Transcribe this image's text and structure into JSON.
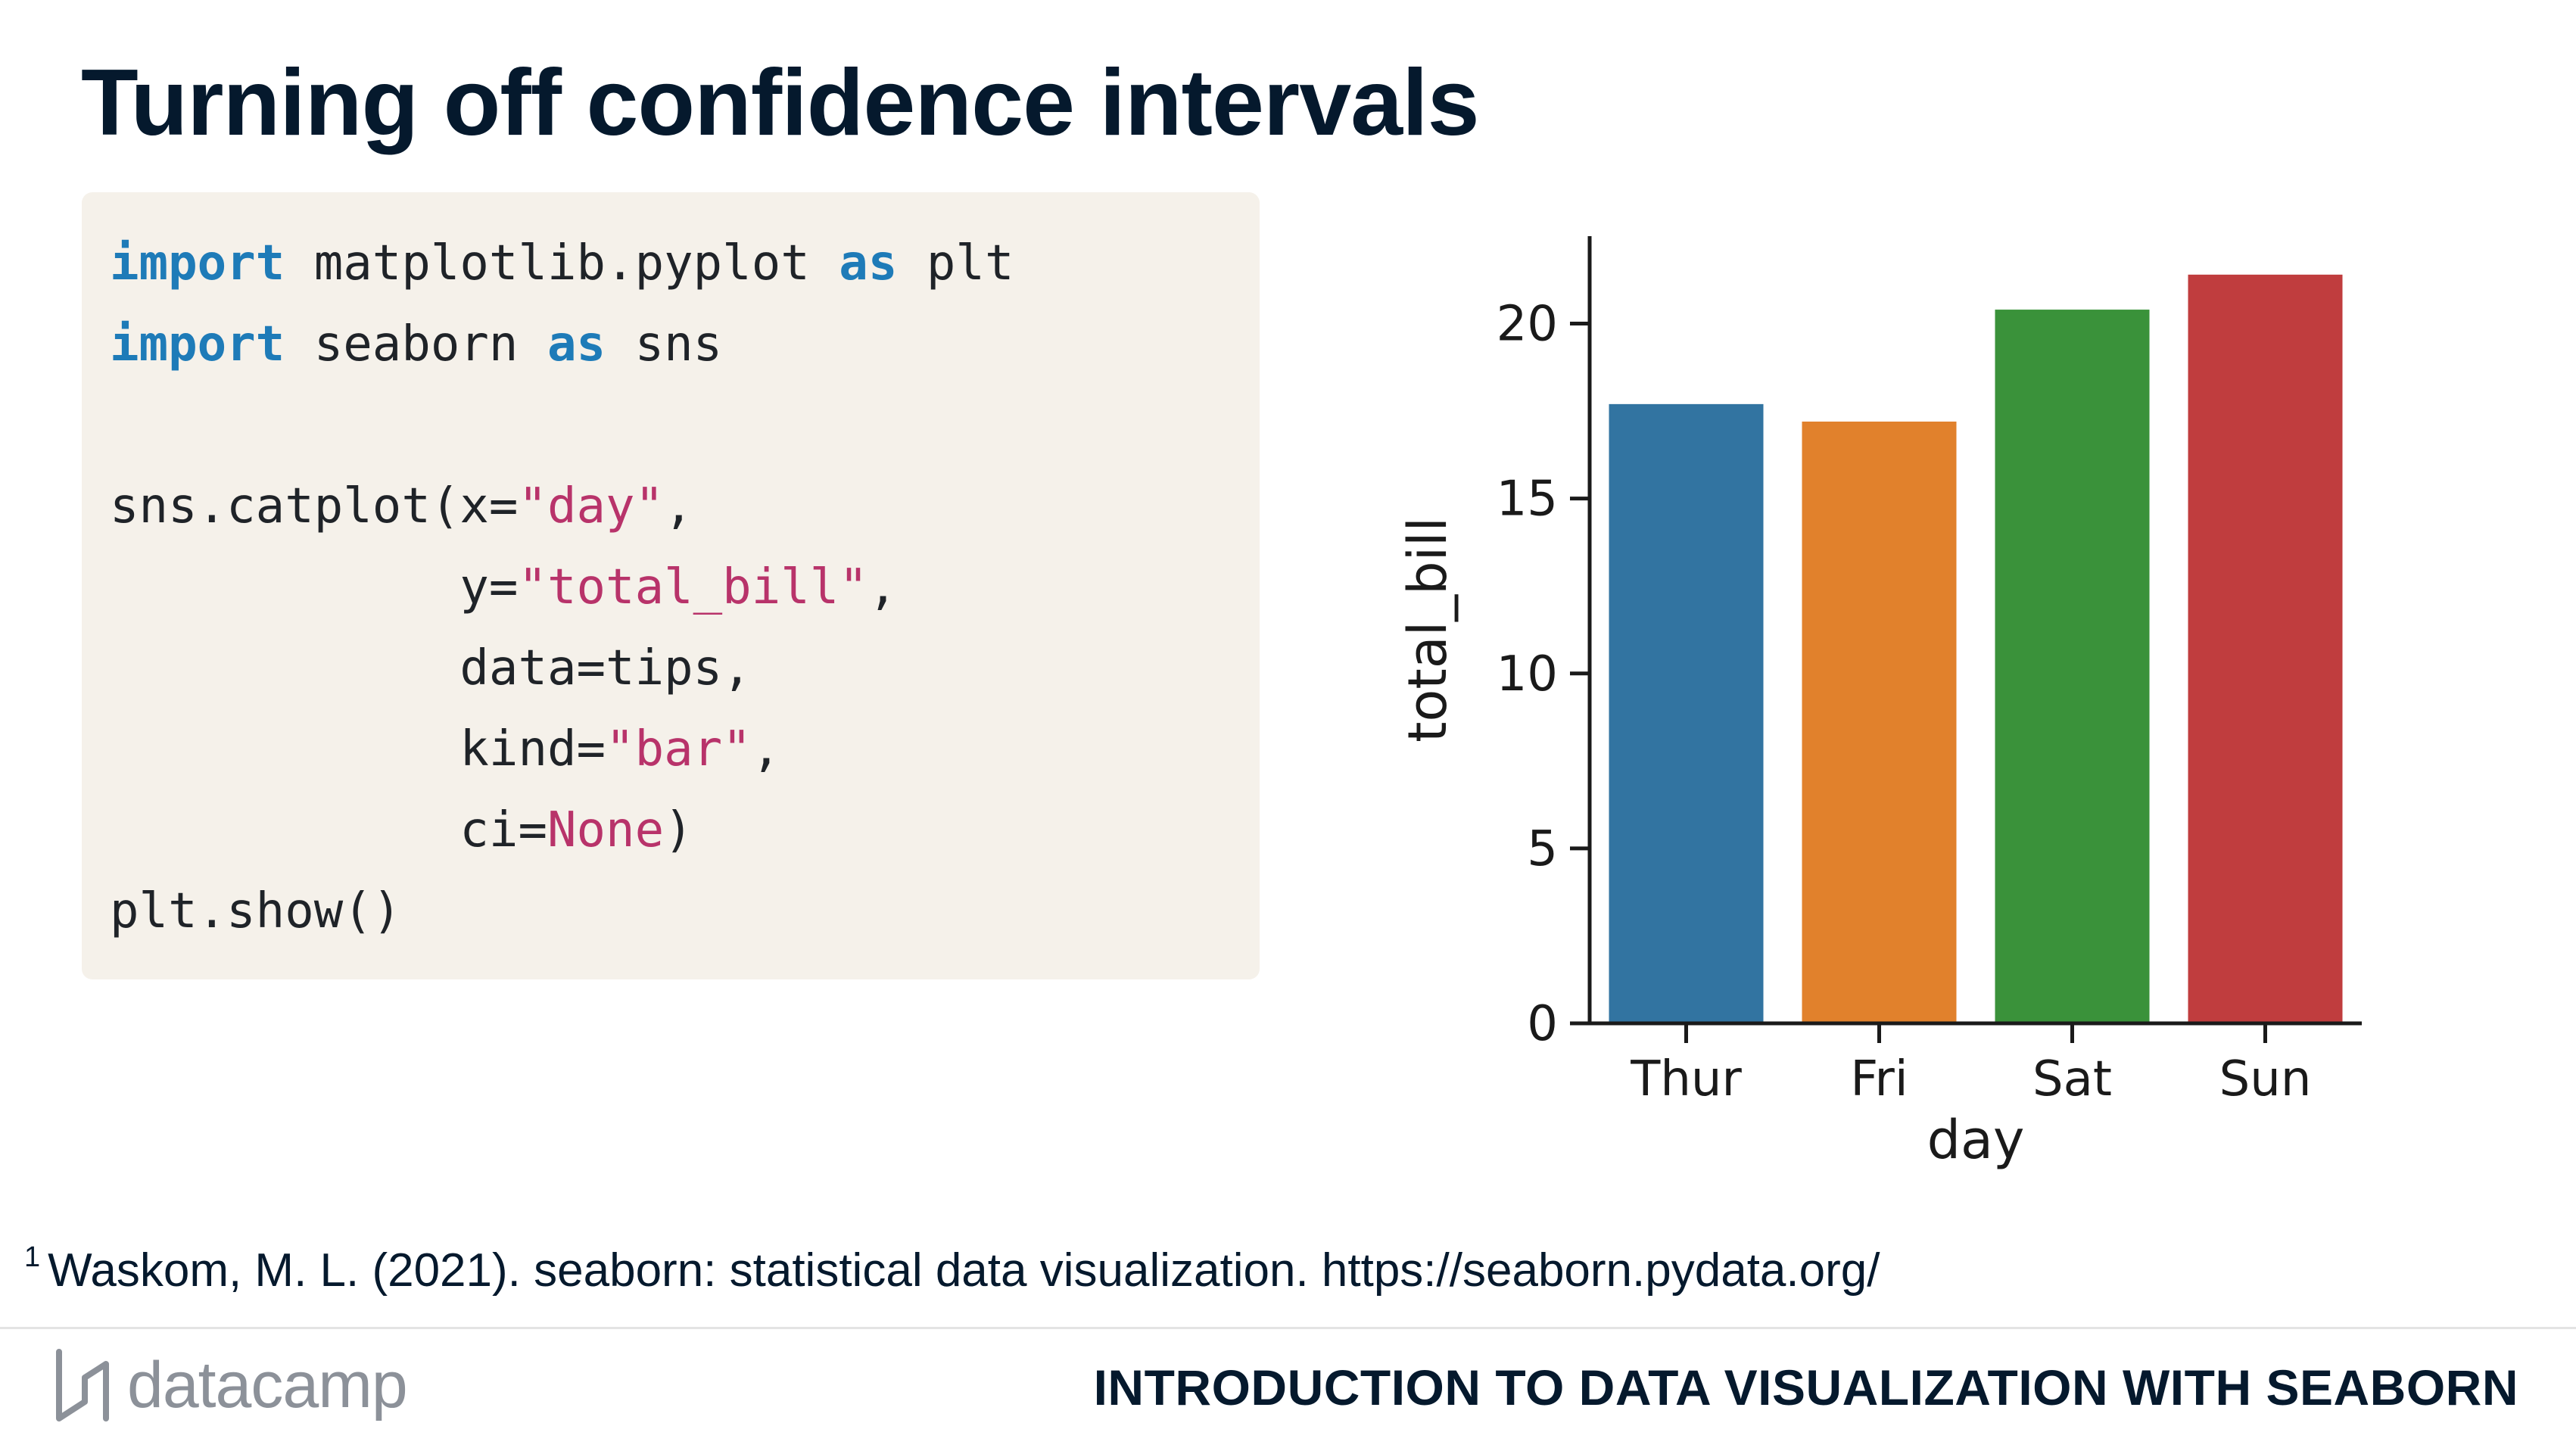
{
  "slide": {
    "title": "Turning off confidence intervals"
  },
  "code": {
    "lines": [
      [
        {
          "t": "import",
          "k": "kw"
        },
        {
          "t": " matplotlib.pyplot ",
          "k": "plain"
        },
        {
          "t": "as",
          "k": "kw"
        },
        {
          "t": " plt",
          "k": "plain"
        }
      ],
      [
        {
          "t": "import",
          "k": "kw"
        },
        {
          "t": " seaborn ",
          "k": "plain"
        },
        {
          "t": "as",
          "k": "kw"
        },
        {
          "t": " sns",
          "k": "plain"
        }
      ],
      [],
      [
        {
          "t": "sns.catplot(x=",
          "k": "plain"
        },
        {
          "t": "\"day\"",
          "k": "str"
        },
        {
          "t": ",",
          "k": "plain"
        }
      ],
      [
        {
          "t": "            y=",
          "k": "plain"
        },
        {
          "t": "\"total_bill\"",
          "k": "str"
        },
        {
          "t": ",",
          "k": "plain"
        }
      ],
      [
        {
          "t": "            data=tips,",
          "k": "plain"
        }
      ],
      [
        {
          "t": "            kind=",
          "k": "plain"
        },
        {
          "t": "\"bar\"",
          "k": "str"
        },
        {
          "t": ",",
          "k": "plain"
        }
      ],
      [
        {
          "t": "            ci=",
          "k": "plain"
        },
        {
          "t": "None",
          "k": "none"
        },
        {
          "t": ")",
          "k": "plain"
        }
      ],
      [
        {
          "t": "plt.show()",
          "k": "plain"
        }
      ]
    ]
  },
  "chart_data": {
    "type": "bar",
    "categories": [
      "Thur",
      "Fri",
      "Sat",
      "Sun"
    ],
    "values": [
      17.7,
      17.2,
      20.4,
      21.4
    ],
    "colors": [
      "#3274a1",
      "#e1812c",
      "#3a923a",
      "#c03d3e"
    ],
    "xlabel": "day",
    "ylabel": "total_bill",
    "ylim": [
      0,
      22.5
    ],
    "yticks": [
      0,
      5,
      10,
      15,
      20
    ],
    "grid": false
  },
  "footnote": {
    "marker": "1",
    "text": "Waskom, M. L. (2021). seaborn: statistical data visualization. https://seaborn.pydata.org/"
  },
  "footer": {
    "brand": "datacamp",
    "course": "INTRODUCTION TO DATA VISUALIZATION WITH SEABORN"
  }
}
